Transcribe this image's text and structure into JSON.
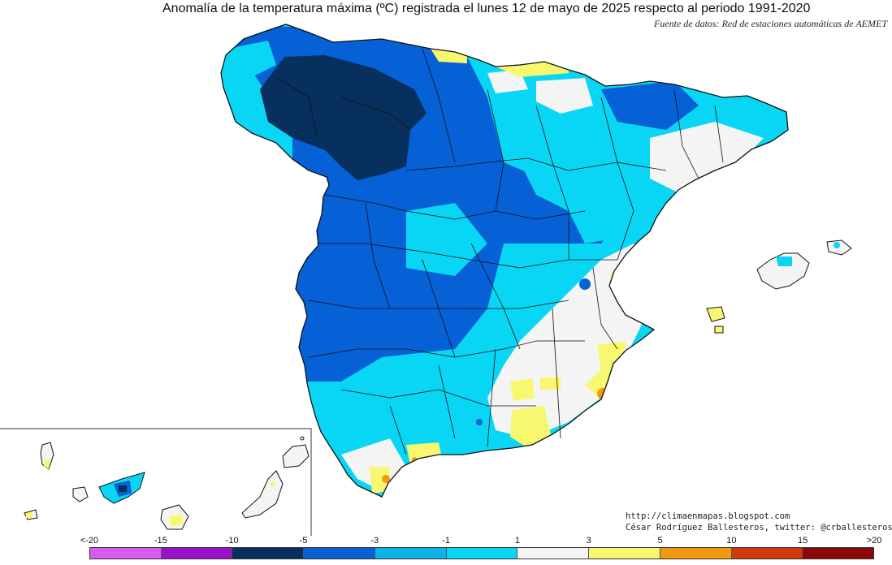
{
  "title": "Anomalía de la temperatura máxima (ºC) registrada el lunes 12 de mayo de 2025 respecto al periodo 1991-2020",
  "source": "Fuente de datos: Red de estaciones automáticas de AEMET",
  "credits": {
    "url": "http://climaenmapas.blogspot.com",
    "author": "César Rodríguez Ballesteros, twitter: @crballesteros"
  },
  "map_regions": {
    "mainland": "Península Ibérica (España)",
    "balearic": "Islas Baleares",
    "canary_inset": "Islas Canarias"
  },
  "legend": {
    "ticks": [
      "<-20",
      "-15",
      "-10",
      "-5",
      "-3",
      "-1",
      "1",
      "3",
      "5",
      "10",
      "15",
      ">20"
    ],
    "colors": [
      "#d65cf0",
      "#9a10c8",
      "#07305e",
      "#0660d6",
      "#0ab4e8",
      "#09d6f4",
      "#f4f4f4",
      "#f8f770",
      "#f39a10",
      "#d03a08",
      "#8a0808",
      "#6a3808"
    ]
  }
}
